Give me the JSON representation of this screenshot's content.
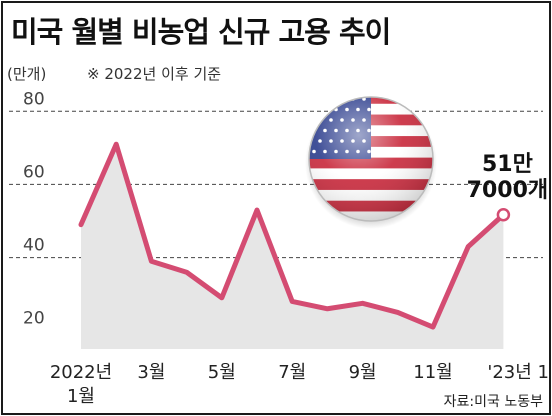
{
  "title": "미국 월별 비농업 신규 고용 추이",
  "unit_label": "(만개)",
  "note": "※ 2022년 이후 기준",
  "source": "자료:미국 노동부",
  "flag_icon": "us-flag-icon",
  "colors": {
    "line": "#d44c72",
    "area": "#e6e6e6",
    "grid": "#444444"
  },
  "chart_data": {
    "type": "area",
    "title": "미국 월별 비농업 신규 고용 추이",
    "ylabel": "(만개)",
    "xlabel": "",
    "ylim": [
      15,
      85
    ],
    "yticks": [
      20,
      40,
      60,
      80
    ],
    "grid": true,
    "x": [
      "2022-01",
      "2022-02",
      "2022-03",
      "2022-04",
      "2022-05",
      "2022-06",
      "2022-07",
      "2022-08",
      "2022-09",
      "2022-10",
      "2022-11",
      "2022-12",
      "2023-01"
    ],
    "xtick_labels": [
      {
        "index": 0,
        "lines": [
          "2022년",
          "1월"
        ]
      },
      {
        "index": 2,
        "lines": [
          "3월"
        ]
      },
      {
        "index": 4,
        "lines": [
          "5월"
        ]
      },
      {
        "index": 6,
        "lines": [
          "7월"
        ]
      },
      {
        "index": 8,
        "lines": [
          "9월"
        ]
      },
      {
        "index": 10,
        "lines": [
          "11월"
        ]
      },
      {
        "index": 12,
        "lines": [
          "'23년 1월"
        ]
      }
    ],
    "series": [
      {
        "values": [
          49,
          71,
          39,
          36,
          29,
          53,
          28,
          26,
          27.5,
          25,
          21,
          43,
          51.7
        ]
      }
    ],
    "annotation": {
      "index": 12,
      "lines": [
        "51만",
        "7000개"
      ]
    }
  }
}
